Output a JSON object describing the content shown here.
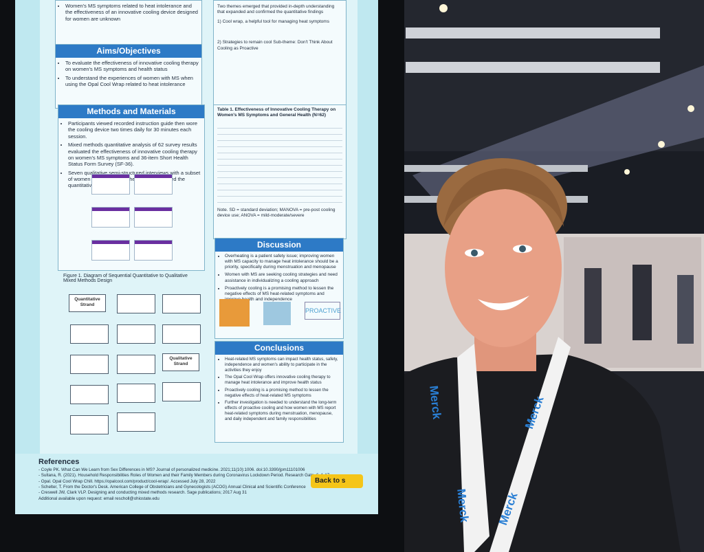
{
  "poster": {
    "intro_text": "Women's MS symptoms related to heat intolerance and the effectiveness of an innovative cooling device designed for women are unknown",
    "aims": {
      "heading": "Aims/Objectives",
      "bullets": [
        "To evaluate the effectiveness of innovative cooling therapy on women's MS symptoms and health status",
        "To understand the experiences of women with MS when using the Opal Cool Wrap related to heat intolerance"
      ]
    },
    "methods": {
      "heading": "Methods and Materials",
      "bullets": [
        "Participants viewed recorded instruction guide then wore the cooling device two times daily for 30 minutes each session.",
        "Mixed methods quantitative analysis of 62 survey results evaluated the effectiveness of innovative cooling therapy on women's MS symptoms and 36-item Short Health Status Form Survey (SF-36).",
        "Seven qualitative semi-structured interviews with a subset of women who completed the surveys validated the quantitative findings."
      ]
    },
    "figure_caption": "Figure 1. Diagram of Sequential Quantitative to Qualitative Mixed Methods Design",
    "diagram": {
      "quantitative": "Quantitative Strand",
      "qualitative": "Qualitative Strand"
    },
    "results_text": [
      "Two themes emerged that provided in-depth understanding that expanded and confirmed the quantitative findings",
      "1) Cool wrap, a helpful tool for managing heat symptoms",
      "2) Strategies to remain cool Sub-theme: Don't Think About Cooling as Proactive"
    ],
    "table_caption": "Table 1. Effectiveness of Innovative Cooling Therapy on Women's MS Symptoms and General Health (N=62)",
    "table_note": "Note. SD = standard deviation; MANOVA = pre-post cooling device use; ANOVA = mild-moderate/severe",
    "discussion": {
      "heading": "Discussion",
      "bullets": [
        "Overheating is a patient safety issue; improving women with MS capacity to manage heat intolerance should be a priority, specifically during menstruation and menopause",
        "Women with MS are seeking cooling strategies and need assistance in individualizing a cooling approach",
        "Proactively cooling is a promising method to lessen the negative effects of MS heat-related symptoms and improve health and independence"
      ],
      "image_label": "PROACTIVE"
    },
    "conclusions": {
      "heading": "Conclusions",
      "bullets": [
        "Heat-related MS symptoms can impact health status, safety, independence and women's ability to participate in the activities they enjoy",
        "The Opal Cool Wrap offers innovative cooling therapy to manage heat intolerance and improve health status",
        "Proactively cooling is a promising method to lessen the negative effects of heat-related MS symptoms",
        "Further investigation is needed to understand the long-term effects of proactive cooling and how women with MS report heat-related symptoms during menstruation, menopause, and daily independent and family responsibilities"
      ]
    },
    "references": {
      "heading": "References",
      "items": [
        "- Coyle PK. What Can We Learn from Sex Differences in MS? Journal of personalized medicine. 2021;11(10):1006. doi:10.3390/jpm11101006",
        "- Sultana, R. (2021). Household Responsibilities Roles of Women and their Family Members during Coronavirus Lockdown Period. Research Gate, 6, 1-17.",
        "- Opal. Opal Cool Wrap Chill. https://opalcool.com/product/cool-wrap/. Accessed July 28, 2022",
        "- Schelter, T. From the Doctor's Desk. American College of Obstetricians and Gynecologists (ACOG) Annual Clinical and Scientific Conference",
        "- Creswell JW, Clark VLP. Designing and conducting mixed methods research. Sage publications; 2017 Aug 31",
        "Additional available upon request: email rescholl@ohiostate.edu"
      ]
    },
    "back_button": "Back to s"
  },
  "lanyard_text": "Merck"
}
